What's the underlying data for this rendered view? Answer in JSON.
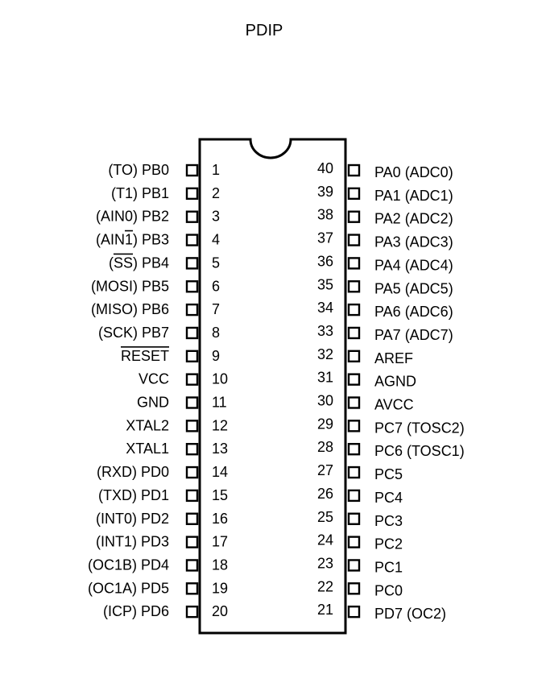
{
  "title": "PDIP",
  "package_type": "PDIP",
  "pin_count": 40,
  "left_pins": [
    {
      "number": "1",
      "label": "(TO) PB0",
      "overline": ""
    },
    {
      "number": "2",
      "label": "(T1) PB1",
      "overline": ""
    },
    {
      "number": "3",
      "label": "(AIN0) PB2",
      "overline": ""
    },
    {
      "number": "4",
      "label": "(AIN1) PB3",
      "overline": "1"
    },
    {
      "number": "5",
      "label": "(SS) PB4",
      "overline": "SS"
    },
    {
      "number": "6",
      "label": "(MOSI) PB5",
      "overline": ""
    },
    {
      "number": "7",
      "label": "(MISO) PB6",
      "overline": ""
    },
    {
      "number": "8",
      "label": "(SCK) PB7",
      "overline": ""
    },
    {
      "number": "9",
      "label": "RESET",
      "overline": "RESET"
    },
    {
      "number": "10",
      "label": "VCC",
      "overline": ""
    },
    {
      "number": "11",
      "label": "GND",
      "overline": ""
    },
    {
      "number": "12",
      "label": "XTAL2",
      "overline": ""
    },
    {
      "number": "13",
      "label": "XTAL1",
      "overline": ""
    },
    {
      "number": "14",
      "label": "(RXD) PD0",
      "overline": ""
    },
    {
      "number": "15",
      "label": "(TXD) PD1",
      "overline": ""
    },
    {
      "number": "16",
      "label": "(INT0) PD2",
      "overline": ""
    },
    {
      "number": "17",
      "label": "(INT1) PD3",
      "overline": ""
    },
    {
      "number": "18",
      "label": "(OC1B) PD4",
      "overline": ""
    },
    {
      "number": "19",
      "label": "(OC1A) PD5",
      "overline": ""
    },
    {
      "number": "20",
      "label": "(ICP) PD6",
      "overline": ""
    }
  ],
  "right_pins": [
    {
      "number": "40",
      "label": "PA0 (ADC0)"
    },
    {
      "number": "39",
      "label": "PA1 (ADC1)"
    },
    {
      "number": "38",
      "label": "PA2 (ADC2)"
    },
    {
      "number": "37",
      "label": "PA3 (ADC3)"
    },
    {
      "number": "36",
      "label": "PA4 (ADC4)"
    },
    {
      "number": "35",
      "label": "PA5 (ADC5)"
    },
    {
      "number": "34",
      "label": "PA6 (ADC6)"
    },
    {
      "number": "33",
      "label": "PA7 (ADC7)"
    },
    {
      "number": "32",
      "label": "AREF"
    },
    {
      "number": "31",
      "label": "AGND"
    },
    {
      "number": "30",
      "label": "AVCC"
    },
    {
      "number": "29",
      "label": "PC7 (TOSC2)"
    },
    {
      "number": "28",
      "label": "PC6 (TOSC1)"
    },
    {
      "number": "27",
      "label": "PC5"
    },
    {
      "number": "26",
      "label": "PC4"
    },
    {
      "number": "25",
      "label": "PC3"
    },
    {
      "number": "24",
      "label": "PC2"
    },
    {
      "number": "23",
      "label": "PC1"
    },
    {
      "number": "22",
      "label": "PC0"
    },
    {
      "number": "21",
      "label": "PD7 (OC2)"
    }
  ],
  "colors": {
    "stroke": "#000000",
    "background": "#ffffff"
  }
}
